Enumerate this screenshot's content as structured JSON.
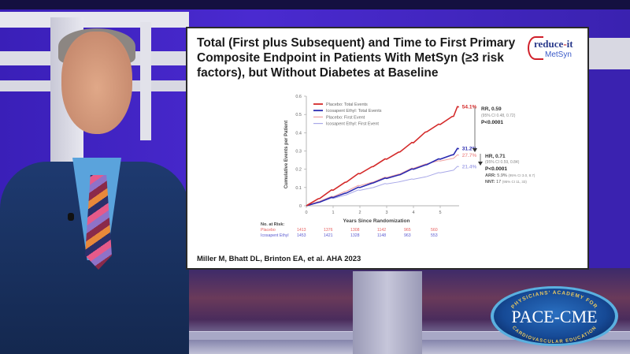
{
  "slide": {
    "title": "Total (First plus Subsequent) and Time to First Primary Composite Endpoint in Patients With MetSyn (≥3 risk factors), but Without Diabetes at Baseline",
    "logo": {
      "main": "reduce",
      "dash": "-",
      "suffix": "it",
      "sub": "MetSyn"
    },
    "citation": "Miller M, Bhatt DL, Brinton EA, et al. AHA 2023"
  },
  "chart_data": {
    "type": "line",
    "title": "Total (First plus Subsequent) and Time to First Primary Composite Endpoint in Patients With MetSyn (≥3 risk factors), but Without Diabetes at Baseline",
    "xlabel": "Years Since Randomization",
    "ylabel": "Cumulative Events per Patient",
    "xlim": [
      0,
      5.7
    ],
    "ylim": [
      0,
      0.6
    ],
    "xticks": [
      "0",
      "1",
      "2",
      "3",
      "4",
      "5"
    ],
    "yticks": [
      "0",
      "0.1",
      "0.2",
      "0.3",
      "0.4",
      "0.5",
      "0.6"
    ],
    "legend_position": "upper-left",
    "grid": false,
    "x": [
      0,
      0.5,
      1,
      1.5,
      2,
      2.5,
      3,
      3.5,
      4,
      4.5,
      5,
      5.5,
      5.7
    ],
    "series": [
      {
        "name": "Placebo: Total Events",
        "color": "#d42a2a",
        "width": 1.6,
        "values": [
          0,
          0.04,
          0.085,
          0.13,
          0.175,
          0.215,
          0.255,
          0.295,
          0.345,
          0.405,
          0.445,
          0.49,
          0.541
        ],
        "end_label": "54.1%"
      },
      {
        "name": "Icosapent Ethyl: Total Events",
        "color": "#2a2ab0",
        "width": 1.6,
        "values": [
          0,
          0.02,
          0.045,
          0.07,
          0.1,
          0.125,
          0.15,
          0.17,
          0.2,
          0.225,
          0.255,
          0.28,
          0.312
        ],
        "end_label": "31.2%"
      },
      {
        "name": "Placebo: First Event",
        "color": "#f0a0a0",
        "width": 1.0,
        "values": [
          0,
          0.025,
          0.05,
          0.08,
          0.11,
          0.13,
          0.155,
          0.175,
          0.205,
          0.23,
          0.245,
          0.26,
          0.277
        ],
        "end_label": "27.7%"
      },
      {
        "name": "Icosapent Ethyl: First Event",
        "color": "#a8a8e8",
        "width": 1.0,
        "values": [
          0,
          0.02,
          0.04,
          0.06,
          0.085,
          0.1,
          0.12,
          0.132,
          0.145,
          0.16,
          0.18,
          0.195,
          0.214
        ],
        "end_label": "21.4%"
      }
    ],
    "annotations": {
      "rr": {
        "label": "RR, 0.59",
        "ci": "(95% CI 0.48, 0.72)",
        "p": "P<0.0001"
      },
      "hr": {
        "label": "HR, 0.71",
        "ci": "(95% CI 0.59, 0.84)",
        "p": "P<0.0001",
        "arr_label": "ARR:",
        "arr_value": "5.9%",
        "arr_ci": "(95% CI 3.0, 8.7)",
        "nnt_label": "NNT:",
        "nnt_value": "17",
        "nnt_ci": "(95% CI 11, 33)"
      }
    },
    "at_risk": {
      "header": "No. at Risk:",
      "rows": [
        {
          "label": "Placebo",
          "color": "#e86060",
          "values": [
            "1413",
            "1376",
            "1308",
            "1142",
            "965",
            "560"
          ]
        },
        {
          "label": "Icosapent Ethyl",
          "color": "#5a5ad0",
          "values": [
            "1453",
            "1421",
            "1328",
            "1148",
            "963",
            "553"
          ]
        }
      ]
    }
  },
  "watermark": {
    "main": "PACE-CME",
    "top_arc": "PHYSICIANS' ACADEMY FOR",
    "bottom_arc": "CARDIOVASCULAR EDUCATION"
  }
}
